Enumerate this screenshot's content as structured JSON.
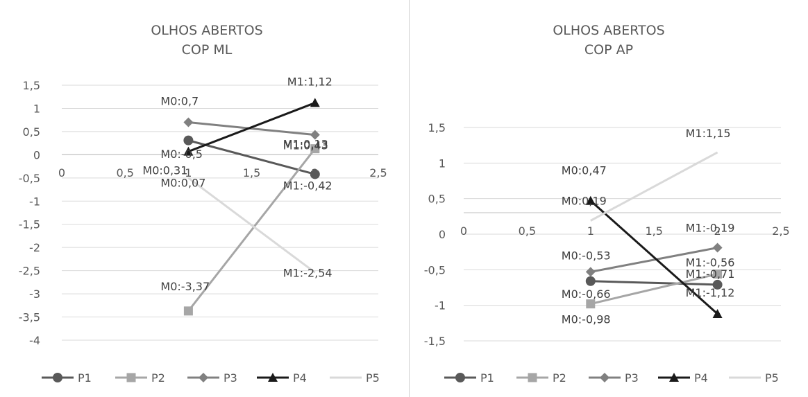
{
  "chart_data": [
    {
      "type": "line",
      "title": [
        "OLHOS ABERTOS",
        "COP ML"
      ],
      "xlim": [
        0,
        2.5
      ],
      "ylim": [
        -4,
        1.5
      ],
      "xticks": [
        "0",
        "0,5",
        "1",
        "1,5",
        "2",
        "2,5"
      ],
      "yticks": [
        "1,5",
        "1",
        "0,5",
        "0",
        "-0,5",
        "-1",
        "-1,5",
        "-2",
        "-2,5",
        "-3",
        "-3,5",
        "-4"
      ],
      "grid": "horizontal",
      "legend": "bottom",
      "series": [
        {
          "name": "P1",
          "color": "#595959",
          "marker": "circle",
          "x": [
            1,
            2
          ],
          "y": [
            0.31,
            -0.42
          ],
          "labels": [
            "M0:0,31",
            "M1:-0,42"
          ]
        },
        {
          "name": "P2",
          "color": "#a6a6a6",
          "marker": "square",
          "x": [
            1,
            2
          ],
          "y": [
            -3.37,
            0.13
          ],
          "labels": [
            "M0:-3,37",
            "M1:0,13"
          ]
        },
        {
          "name": "P3",
          "color": "#808080",
          "marker": "diamond",
          "x": [
            1,
            2
          ],
          "y": [
            0.7,
            0.43
          ],
          "labels": [
            "M0:0,7",
            "M1:0,43"
          ]
        },
        {
          "name": "P4",
          "color": "#1a1a1a",
          "marker": "triangle",
          "x": [
            1,
            2
          ],
          "y": [
            0.07,
            1.12
          ],
          "labels": [
            "M0:0,07",
            "M1:1,12"
          ]
        },
        {
          "name": "P5",
          "color": "#d9d9d9",
          "marker": "none",
          "x": [
            1,
            2
          ],
          "y": [
            -0.5,
            -2.54
          ],
          "labels": [
            "M0:-0,5",
            "M1:-2,54"
          ]
        }
      ]
    },
    {
      "type": "line",
      "title": [
        "OLHOS ABERTOS",
        "COP AP"
      ],
      "xlim": [
        0,
        2.5
      ],
      "ylim": [
        -1.5,
        1.5
      ],
      "xticks": [
        "0",
        "0,5",
        "1",
        "1,5",
        "2",
        "2,5"
      ],
      "yticks": [
        "1,5",
        "1",
        "0,5",
        "0",
        "-0,5",
        "-1",
        "-1,5"
      ],
      "grid": "horizontal",
      "legend": "bottom",
      "series": [
        {
          "name": "P1",
          "color": "#595959",
          "marker": "circle",
          "x": [
            1,
            2
          ],
          "y": [
            -0.66,
            -0.71
          ],
          "labels": [
            "M0:-0,66",
            "M1:-0,71"
          ]
        },
        {
          "name": "P2",
          "color": "#a6a6a6",
          "marker": "square",
          "x": [
            1,
            2
          ],
          "y": [
            -0.98,
            -0.56
          ],
          "labels": [
            "M0:-0,98",
            "M1:-0,56"
          ]
        },
        {
          "name": "P3",
          "color": "#808080",
          "marker": "diamond",
          "x": [
            1,
            2
          ],
          "y": [
            -0.53,
            -0.19
          ],
          "labels": [
            "M0:-0,53",
            "M1:-0,19"
          ]
        },
        {
          "name": "P4",
          "color": "#1a1a1a",
          "marker": "triangle",
          "x": [
            1,
            2
          ],
          "y": [
            0.47,
            -1.12
          ],
          "labels": [
            "M0:0,47",
            "M1:-1,12"
          ]
        },
        {
          "name": "P5",
          "color": "#d9d9d9",
          "marker": "none",
          "x": [
            1,
            2
          ],
          "y": [
            0.19,
            1.15
          ],
          "labels": [
            "M0:0,19",
            "M1:1,15"
          ]
        }
      ]
    }
  ]
}
